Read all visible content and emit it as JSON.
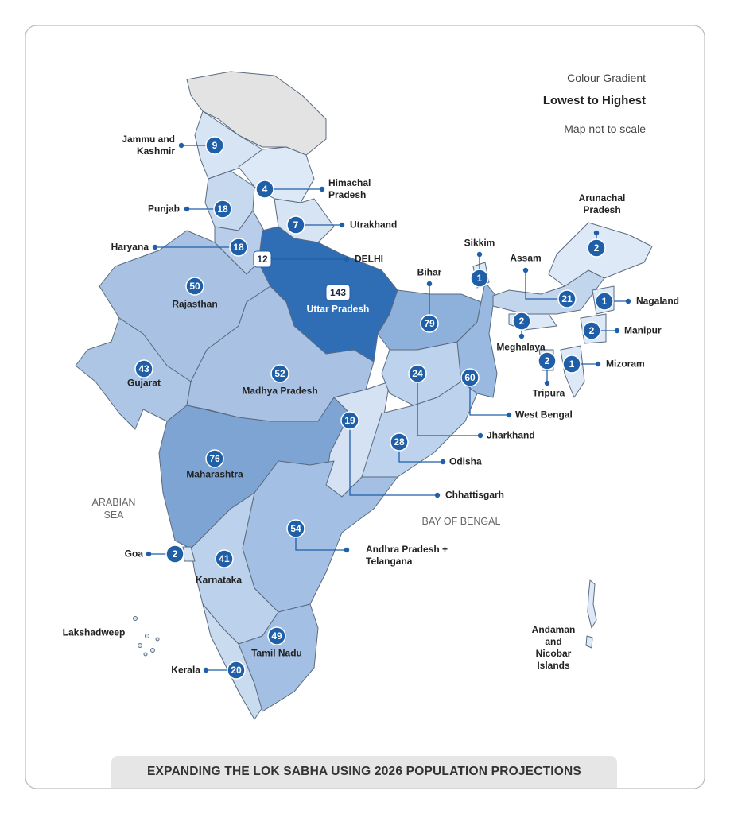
{
  "legend": {
    "title": "Colour Gradient",
    "subtitle": "Lowest to Highest",
    "note": "Map not to scale"
  },
  "seas": [
    "ARABIAN SEA",
    "BAY OF BENGAL"
  ],
  "islands": [
    "Lakshadweep",
    "Andaman and Nicobar Islands"
  ],
  "states": [
    {
      "name": "Jammu and Kashmir",
      "seats": 9
    },
    {
      "name": "Himachal Pradesh",
      "seats": 4
    },
    {
      "name": "Punjab",
      "seats": 18
    },
    {
      "name": "Utrakhand",
      "seats": 7
    },
    {
      "name": "Haryana",
      "seats": 18
    },
    {
      "name": "DELHI",
      "seats": 12
    },
    {
      "name": "Uttar Pradesh",
      "seats": 143
    },
    {
      "name": "Rajasthan",
      "seats": 50
    },
    {
      "name": "Bihar",
      "seats": 79
    },
    {
      "name": "Sikkim",
      "seats": 1
    },
    {
      "name": "Assam",
      "seats": 21
    },
    {
      "name": "Arunachal Pradesh",
      "seats": 2
    },
    {
      "name": "Nagaland",
      "seats": 1
    },
    {
      "name": "Manipur",
      "seats": 2
    },
    {
      "name": "Meghalaya",
      "seats": 2
    },
    {
      "name": "Tripura",
      "seats": 2
    },
    {
      "name": "Mizoram",
      "seats": 1
    },
    {
      "name": "Gujarat",
      "seats": 43
    },
    {
      "name": "Madhya Pradesh",
      "seats": 52
    },
    {
      "name": "West Bengal",
      "seats": 60
    },
    {
      "name": "Jharkhand",
      "seats": 24
    },
    {
      "name": "Chhattisgarh",
      "seats": 19
    },
    {
      "name": "Odisha",
      "seats": 28
    },
    {
      "name": "Maharashtra",
      "seats": 76
    },
    {
      "name": "Andhra Pradesh + Telangana",
      "seats": 54
    },
    {
      "name": "Goa",
      "seats": 2
    },
    {
      "name": "Karnataka",
      "seats": 41
    },
    {
      "name": "Tamil Nadu",
      "seats": 49
    },
    {
      "name": "Kerala",
      "seats": 20
    }
  ],
  "footer": "EXPANDING THE LOK SABHA USING 2026 POPULATION PROJECTIONS"
}
